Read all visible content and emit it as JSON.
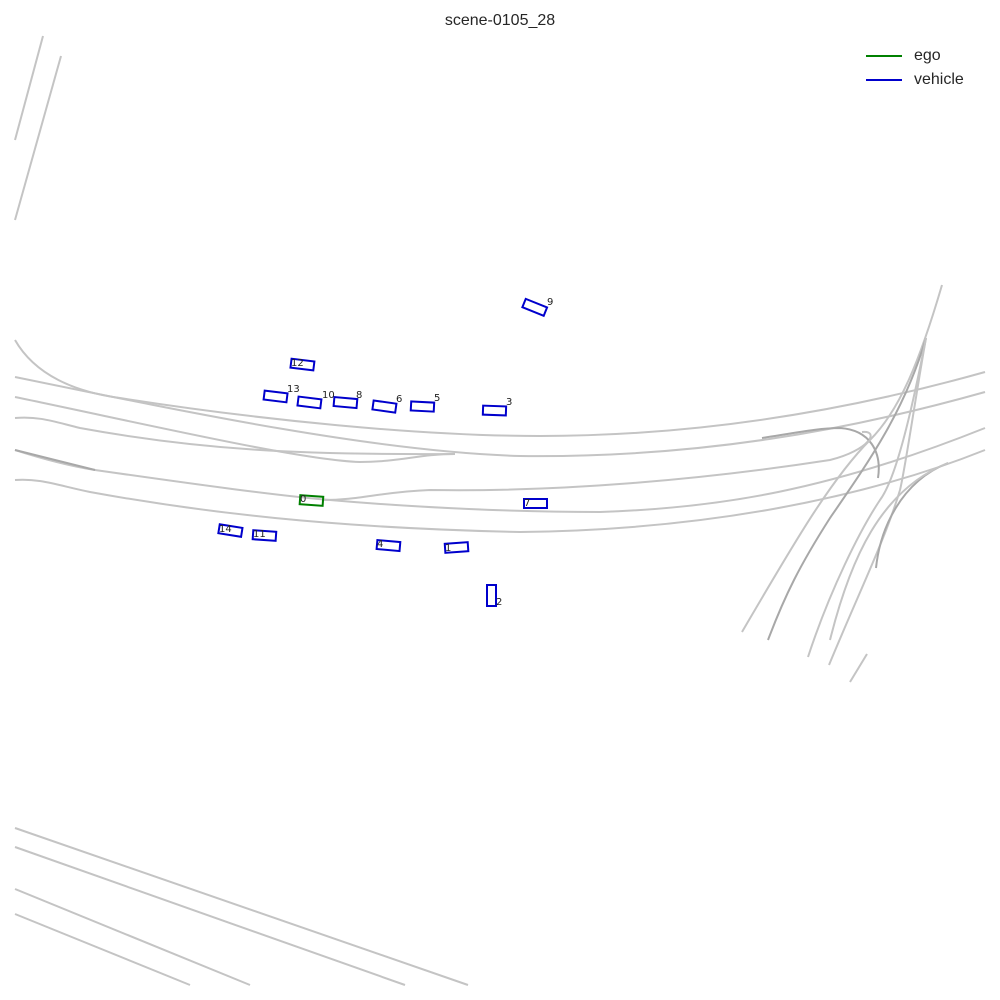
{
  "title": "scene-0105_28",
  "legend": [
    {
      "label": "ego",
      "color": "#008000"
    },
    {
      "label": "vehicle",
      "color": "#0000cc"
    }
  ],
  "colors": {
    "lane": "#c4c4c4",
    "lane_dark": "#a8a8a8",
    "ego": "#008000",
    "vehicle": "#0000cc"
  },
  "agents": [
    {
      "id": "0",
      "type": "ego"
    },
    {
      "id": "1",
      "type": "vehicle"
    },
    {
      "id": "2",
      "type": "vehicle"
    },
    {
      "id": "3",
      "type": "vehicle"
    },
    {
      "id": "4",
      "type": "vehicle"
    },
    {
      "id": "5",
      "type": "vehicle"
    },
    {
      "id": "6",
      "type": "vehicle"
    },
    {
      "id": "7",
      "type": "vehicle"
    },
    {
      "id": "8",
      "type": "vehicle"
    },
    {
      "id": "9",
      "type": "vehicle"
    },
    {
      "id": "10",
      "type": "vehicle"
    },
    {
      "id": "11",
      "type": "vehicle"
    },
    {
      "id": "12",
      "type": "vehicle"
    },
    {
      "id": "13",
      "type": "vehicle"
    },
    {
      "id": "14",
      "type": "vehicle"
    }
  ]
}
